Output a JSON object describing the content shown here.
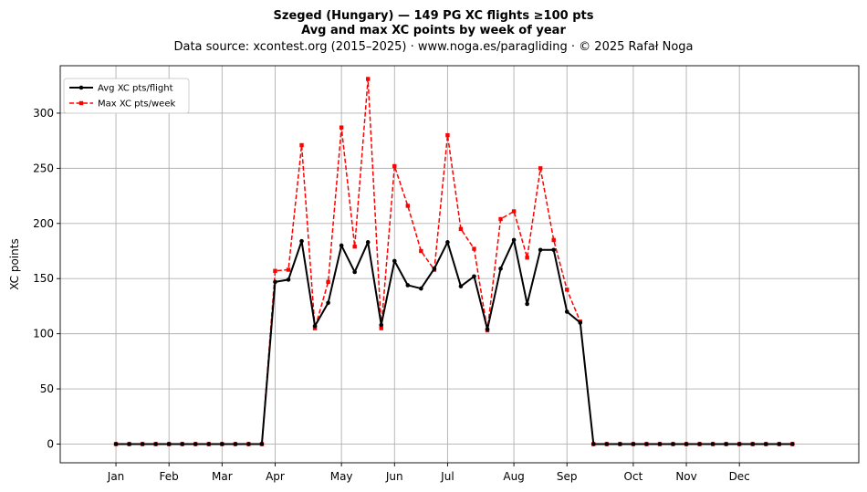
{
  "chart_data": {
    "type": "line",
    "title_line1": "Szeged (Hungary)  —  149 PG XC flights ≥100 pts",
    "title_line2": "Avg and max XC points by week of year",
    "subtitle": "Data source: xcontest.org (2015–2025)  ·  www.noga.es/paragliding  ·  © 2025 Rafał Noga",
    "xlabel": "",
    "ylabel": "XC points",
    "xlim": [
      -4.2,
      56
    ],
    "ylim": [
      -17,
      343
    ],
    "grid": true,
    "legend_position": "top-left",
    "month_ticks": [
      {
        "label": "Jan",
        "week": 0
      },
      {
        "label": "Feb",
        "week": 4
      },
      {
        "label": "Mar",
        "week": 8
      },
      {
        "label": "Apr",
        "week": 12
      },
      {
        "label": "May",
        "week": 17
      },
      {
        "label": "Jun",
        "week": 21
      },
      {
        "label": "Jul",
        "week": 25
      },
      {
        "label": "Aug",
        "week": 30
      },
      {
        "label": "Sep",
        "week": 34
      },
      {
        "label": "Oct",
        "week": 39
      },
      {
        "label": "Nov",
        "week": 43
      },
      {
        "label": "Dec",
        "week": 47
      }
    ],
    "y_ticks": [
      0,
      50,
      100,
      150,
      200,
      250,
      300
    ],
    "series": [
      {
        "name": "Avg XC pts/flight",
        "color": "#000000",
        "style": "solid-circle",
        "values": [
          0,
          0,
          0,
          0,
          0,
          0,
          0,
          0,
          0,
          0,
          0,
          0,
          147,
          149,
          184,
          107,
          128,
          180,
          156,
          183,
          108,
          166,
          144,
          141,
          159,
          183,
          143,
          152,
          104,
          159,
          185,
          127,
          176,
          176,
          120,
          110,
          0,
          0,
          0,
          0,
          0,
          0,
          0,
          0,
          0,
          0,
          0,
          0,
          0,
          0,
          0,
          0
        ]
      },
      {
        "name": "Max XC pts/week",
        "color": "#ff0000",
        "style": "dashed-square",
        "values": [
          0,
          0,
          0,
          0,
          0,
          0,
          0,
          0,
          0,
          0,
          0,
          0,
          157,
          158,
          271,
          105,
          147,
          287,
          179,
          331,
          105,
          252,
          216,
          175,
          158,
          280,
          195,
          177,
          103,
          204,
          211,
          169,
          250,
          185,
          140,
          111,
          0,
          0,
          0,
          0,
          0,
          0,
          0,
          0,
          0,
          0,
          0,
          0,
          0,
          0,
          0,
          0
        ]
      }
    ]
  }
}
